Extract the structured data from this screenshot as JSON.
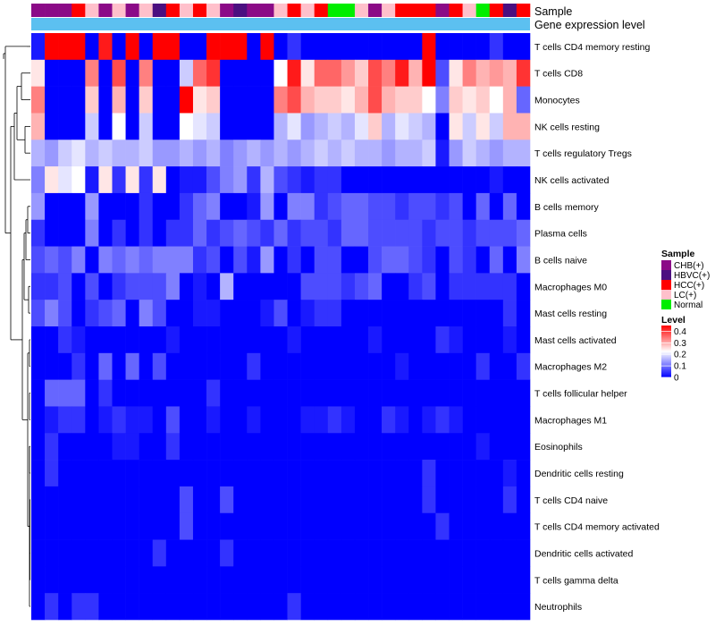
{
  "chart_data": {
    "type": "heatmap",
    "annotation_labels": {
      "sample": "Sample",
      "gene_expression": "Gene expression level"
    },
    "colors": {
      "heat_low": "#0000ff",
      "heat_mid": "#ffffff",
      "heat_high": "#ff0000",
      "gene_expression_bar": "#5cc0f0",
      "dendrogram": "#000000"
    },
    "sample_groups": [
      {
        "code": "C",
        "name": "CHB(+)",
        "color": "#8b0a87"
      },
      {
        "code": "B",
        "name": "HBVC(+)",
        "color": "#4b0f80"
      },
      {
        "code": "H",
        "name": "HCC(+)",
        "color": "#ff0000"
      },
      {
        "code": "L",
        "name": "LC(+)",
        "color": "#ffc0cb"
      },
      {
        "code": "N",
        "name": "Normal",
        "color": "#00ee00"
      }
    ],
    "samples": [
      "C",
      "C",
      "C",
      "H",
      "L",
      "C",
      "L",
      "C",
      "L",
      "B",
      "H",
      "L",
      "H",
      "L",
      "C",
      "B",
      "C",
      "C",
      "L",
      "H",
      "L",
      "H",
      "N",
      "N",
      "L",
      "C",
      "L",
      "H",
      "H",
      "H",
      "C",
      "H",
      "L",
      "N",
      "H",
      "B",
      "H"
    ],
    "legend": {
      "sample_title": "Sample",
      "level_title": "Level",
      "level_ticks": [
        0.4,
        0.3,
        0.2,
        0.1,
        0
      ],
      "level_tick_labels": [
        "0.4",
        "0.3",
        "0.2",
        "0.1",
        "0"
      ],
      "level_range": [
        0,
        0.45
      ]
    },
    "rows": [
      "T cells CD4 memory resting",
      "T cells CD8",
      "Monocytes",
      "NK cells resting",
      "T cells regulatory  Tregs",
      "NK cells activated",
      "B cells memory",
      "Plasma cells",
      "B cells naive",
      "Macrophages M0",
      "Mast cells resting",
      "Mast cells activated",
      "Macrophages M2",
      "T cells follicular helper",
      "Macrophages M1",
      "Eosinophils",
      "Dendritic cells resting",
      "T cells CD4 naive",
      "T cells CD4 memory activated",
      "Dendritic cells activated",
      "T cells gamma delta",
      "Neutrophils"
    ],
    "values": [
      [
        0.02,
        0.44,
        0.42,
        0.44,
        0.0,
        0.38,
        0.0,
        0.4,
        0.0,
        0.44,
        0.44,
        0.0,
        0.0,
        0.44,
        0.44,
        0.44,
        0.0,
        0.44,
        0.0,
        0.04,
        0.0,
        0.0,
        0.0,
        0.0,
        0.0,
        0.0,
        0.0,
        0.0,
        0.0,
        0.44,
        0.0,
        0.0,
        0.0,
        0.0,
        0.04,
        0.0,
        0.0
      ],
      [
        0.22,
        0.0,
        0.0,
        0.0,
        0.3,
        0.0,
        0.34,
        0.0,
        0.3,
        0.0,
        0.0,
        0.16,
        0.32,
        0.36,
        0.0,
        0.0,
        0.0,
        0.0,
        0.2,
        0.38,
        0.22,
        0.32,
        0.32,
        0.28,
        0.24,
        0.34,
        0.3,
        0.38,
        0.26,
        0.4,
        0.06,
        0.22,
        0.3,
        0.26,
        0.28,
        0.26,
        0.36
      ],
      [
        0.3,
        0.0,
        0.0,
        0.0,
        0.24,
        0.0,
        0.26,
        0.0,
        0.24,
        0.0,
        0.0,
        0.4,
        0.22,
        0.24,
        0.0,
        0.0,
        0.0,
        0.0,
        0.3,
        0.34,
        0.26,
        0.24,
        0.24,
        0.22,
        0.26,
        0.34,
        0.26,
        0.24,
        0.24,
        0.2,
        0.1,
        0.24,
        0.22,
        0.24,
        0.2,
        0.26,
        0.08
      ],
      [
        0.26,
        0.0,
        0.0,
        0.0,
        0.16,
        0.0,
        0.2,
        0.0,
        0.16,
        0.0,
        0.0,
        0.2,
        0.18,
        0.16,
        0.0,
        0.0,
        0.0,
        0.0,
        0.14,
        0.18,
        0.12,
        0.14,
        0.16,
        0.14,
        0.18,
        0.24,
        0.14,
        0.18,
        0.16,
        0.14,
        0.0,
        0.22,
        0.16,
        0.22,
        0.16,
        0.26,
        0.26
      ],
      [
        0.14,
        0.12,
        0.16,
        0.18,
        0.14,
        0.16,
        0.14,
        0.14,
        0.16,
        0.12,
        0.12,
        0.14,
        0.12,
        0.14,
        0.1,
        0.12,
        0.14,
        0.12,
        0.14,
        0.12,
        0.14,
        0.16,
        0.14,
        0.16,
        0.14,
        0.14,
        0.12,
        0.14,
        0.14,
        0.16,
        0.02,
        0.12,
        0.16,
        0.14,
        0.12,
        0.14,
        0.14
      ],
      [
        0.1,
        0.22,
        0.18,
        0.2,
        0.02,
        0.22,
        0.04,
        0.22,
        0.04,
        0.22,
        0.0,
        0.02,
        0.02,
        0.06,
        0.1,
        0.12,
        0.04,
        0.14,
        0.06,
        0.04,
        0.02,
        0.04,
        0.04,
        0.0,
        0.0,
        0.0,
        0.0,
        0.0,
        0.0,
        0.0,
        0.0,
        0.0,
        0.0,
        0.0,
        0.02,
        0.0,
        0.0
      ],
      [
        0.12,
        0.0,
        0.0,
        0.0,
        0.12,
        0.0,
        0.0,
        0.0,
        0.04,
        0.0,
        0.0,
        0.04,
        0.08,
        0.1,
        0.0,
        0.0,
        0.02,
        0.12,
        0.0,
        0.1,
        0.1,
        0.04,
        0.06,
        0.08,
        0.08,
        0.06,
        0.06,
        0.04,
        0.06,
        0.06,
        0.04,
        0.06,
        0.0,
        0.08,
        0.0,
        0.08,
        0.0
      ],
      [
        0.04,
        0.0,
        0.0,
        0.0,
        0.1,
        0.0,
        0.04,
        0.0,
        0.04,
        0.0,
        0.04,
        0.04,
        0.08,
        0.04,
        0.06,
        0.08,
        0.06,
        0.04,
        0.08,
        0.04,
        0.06,
        0.06,
        0.04,
        0.08,
        0.08,
        0.06,
        0.06,
        0.06,
        0.06,
        0.04,
        0.06,
        0.06,
        0.04,
        0.06,
        0.06,
        0.06,
        0.08
      ],
      [
        0.06,
        0.08,
        0.06,
        0.1,
        0.0,
        0.1,
        0.08,
        0.1,
        0.08,
        0.1,
        0.1,
        0.1,
        0.04,
        0.06,
        0.0,
        0.06,
        0.02,
        0.12,
        0.0,
        0.04,
        0.0,
        0.06,
        0.06,
        0.0,
        0.0,
        0.06,
        0.08,
        0.08,
        0.06,
        0.04,
        0.0,
        0.06,
        0.04,
        0.0,
        0.08,
        0.0,
        0.1
      ],
      [
        0.04,
        0.04,
        0.06,
        0.0,
        0.06,
        0.0,
        0.04,
        0.06,
        0.06,
        0.06,
        0.1,
        0.0,
        0.02,
        0.0,
        0.14,
        0.0,
        0.0,
        0.0,
        0.0,
        0.0,
        0.06,
        0.06,
        0.06,
        0.04,
        0.06,
        0.08,
        0.0,
        0.0,
        0.04,
        0.06,
        0.0,
        0.04,
        0.04,
        0.04,
        0.04,
        0.04,
        0.0
      ],
      [
        0.06,
        0.1,
        0.06,
        0.0,
        0.04,
        0.06,
        0.08,
        0.0,
        0.1,
        0.06,
        0.0,
        0.0,
        0.02,
        0.02,
        0.0,
        0.0,
        0.0,
        0.02,
        0.06,
        0.0,
        0.02,
        0.04,
        0.04,
        0.0,
        0.0,
        0.0,
        0.0,
        0.0,
        0.0,
        0.0,
        0.0,
        0.0,
        0.0,
        0.0,
        0.0,
        0.04,
        0.0
      ],
      [
        0.0,
        0.0,
        0.04,
        0.02,
        0.0,
        0.0,
        0.0,
        0.0,
        0.0,
        0.0,
        0.02,
        0.0,
        0.0,
        0.0,
        0.0,
        0.0,
        0.0,
        0.0,
        0.0,
        0.02,
        0.0,
        0.0,
        0.0,
        0.0,
        0.0,
        0.02,
        0.0,
        0.0,
        0.0,
        0.0,
        0.04,
        0.02,
        0.0,
        0.0,
        0.0,
        0.02,
        0.0
      ],
      [
        0.0,
        0.0,
        0.0,
        0.04,
        0.0,
        0.08,
        0.0,
        0.08,
        0.0,
        0.06,
        0.0,
        0.0,
        0.0,
        0.0,
        0.0,
        0.0,
        0.04,
        0.0,
        0.0,
        0.0,
        0.0,
        0.0,
        0.0,
        0.0,
        0.0,
        0.0,
        0.0,
        0.02,
        0.0,
        0.0,
        0.0,
        0.0,
        0.0,
        0.04,
        0.0,
        0.0,
        0.04
      ],
      [
        0.0,
        0.08,
        0.08,
        0.08,
        0.0,
        0.04,
        0.0,
        0.0,
        0.0,
        0.0,
        0.0,
        0.0,
        0.0,
        0.04,
        0.0,
        0.0,
        0.0,
        0.0,
        0.0,
        0.0,
        0.0,
        0.0,
        0.0,
        0.0,
        0.0,
        0.0,
        0.0,
        0.0,
        0.0,
        0.0,
        0.0,
        0.0,
        0.0,
        0.0,
        0.0,
        0.0,
        0.0
      ],
      [
        0.0,
        0.02,
        0.04,
        0.04,
        0.0,
        0.02,
        0.04,
        0.02,
        0.02,
        0.0,
        0.06,
        0.0,
        0.0,
        0.02,
        0.0,
        0.0,
        0.02,
        0.0,
        0.0,
        0.0,
        0.02,
        0.02,
        0.04,
        0.02,
        0.0,
        0.0,
        0.04,
        0.02,
        0.0,
        0.02,
        0.04,
        0.02,
        0.0,
        0.0,
        0.0,
        0.0,
        0.0
      ],
      [
        0.0,
        0.04,
        0.0,
        0.0,
        0.0,
        0.0,
        0.02,
        0.02,
        0.0,
        0.0,
        0.04,
        0.0,
        0.0,
        0.0,
        0.0,
        0.0,
        0.0,
        0.0,
        0.0,
        0.0,
        0.0,
        0.0,
        0.0,
        0.0,
        0.0,
        0.0,
        0.0,
        0.0,
        0.0,
        0.0,
        0.0,
        0.0,
        0.0,
        0.02,
        0.0,
        0.0,
        0.0
      ],
      [
        0.0,
        0.04,
        0.0,
        0.0,
        0.0,
        0.0,
        0.0,
        0.0,
        0.0,
        0.0,
        0.0,
        0.0,
        0.0,
        0.0,
        0.0,
        0.0,
        0.0,
        0.0,
        0.0,
        0.0,
        0.0,
        0.0,
        0.0,
        0.0,
        0.0,
        0.0,
        0.0,
        0.0,
        0.0,
        0.04,
        0.0,
        0.0,
        0.0,
        0.0,
        0.0,
        0.02,
        0.0
      ],
      [
        0.0,
        0.0,
        0.0,
        0.0,
        0.0,
        0.0,
        0.0,
        0.0,
        0.0,
        0.0,
        0.0,
        0.06,
        0.0,
        0.0,
        0.06,
        0.0,
        0.0,
        0.0,
        0.0,
        0.0,
        0.0,
        0.0,
        0.0,
        0.0,
        0.0,
        0.0,
        0.0,
        0.0,
        0.0,
        0.04,
        0.0,
        0.0,
        0.0,
        0.0,
        0.0,
        0.04,
        0.0
      ],
      [
        0.0,
        0.0,
        0.0,
        0.0,
        0.0,
        0.0,
        0.0,
        0.0,
        0.0,
        0.0,
        0.0,
        0.06,
        0.0,
        0.0,
        0.0,
        0.0,
        0.0,
        0.0,
        0.0,
        0.0,
        0.0,
        0.0,
        0.0,
        0.0,
        0.0,
        0.0,
        0.0,
        0.0,
        0.0,
        0.0,
        0.04,
        0.0,
        0.0,
        0.0,
        0.0,
        0.0,
        0.0
      ],
      [
        0.0,
        0.0,
        0.0,
        0.0,
        0.0,
        0.0,
        0.0,
        0.0,
        0.0,
        0.04,
        0.0,
        0.0,
        0.0,
        0.0,
        0.04,
        0.0,
        0.0,
        0.0,
        0.0,
        0.0,
        0.0,
        0.0,
        0.0,
        0.0,
        0.0,
        0.0,
        0.0,
        0.0,
        0.0,
        0.0,
        0.0,
        0.0,
        0.0,
        0.0,
        0.0,
        0.0,
        0.0
      ],
      [
        0.0,
        0.0,
        0.0,
        0.0,
        0.0,
        0.0,
        0.0,
        0.0,
        0.0,
        0.0,
        0.0,
        0.0,
        0.0,
        0.0,
        0.0,
        0.0,
        0.0,
        0.0,
        0.0,
        0.0,
        0.0,
        0.0,
        0.0,
        0.0,
        0.0,
        0.0,
        0.0,
        0.0,
        0.0,
        0.0,
        0.0,
        0.0,
        0.0,
        0.0,
        0.0,
        0.0,
        0.0
      ],
      [
        0.0,
        0.04,
        0.0,
        0.04,
        0.04,
        0.0,
        0.0,
        0.0,
        0.0,
        0.0,
        0.0,
        0.0,
        0.0,
        0.0,
        0.0,
        0.0,
        0.0,
        0.0,
        0.0,
        0.04,
        0.0,
        0.0,
        0.0,
        0.0,
        0.0,
        0.0,
        0.0,
        0.0,
        0.0,
        0.0,
        0.0,
        0.0,
        0.0,
        0.0,
        0.0,
        0.0,
        0.0
      ]
    ]
  }
}
